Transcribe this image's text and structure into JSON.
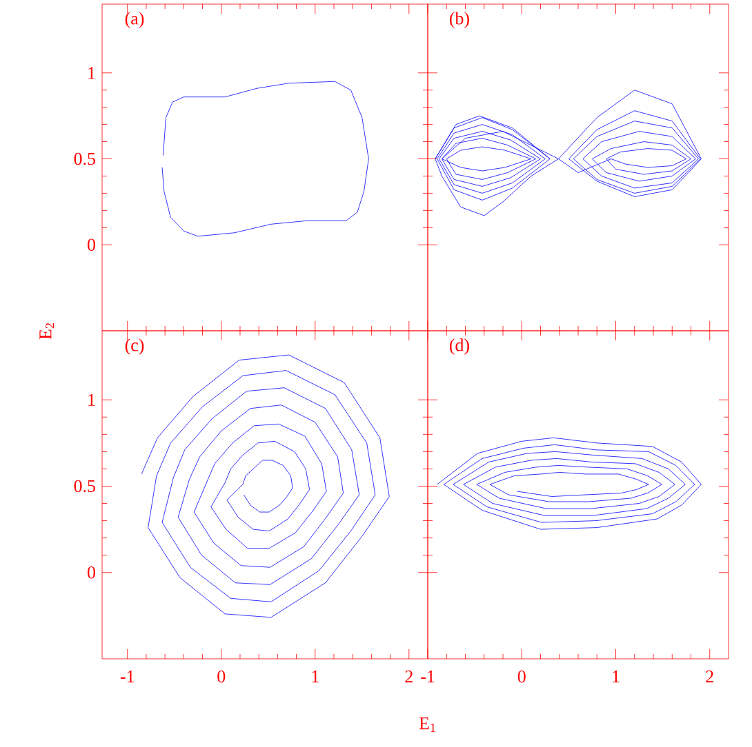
{
  "chart_data": [
    {
      "type": "line",
      "title": "(a)",
      "color": "#0000ff",
      "tick_labels": "y",
      "xlim": [
        -1.27,
        2.2
      ],
      "ylim": [
        -0.5,
        1.4
      ],
      "xticks": [
        -1,
        0,
        1,
        2
      ],
      "yticks": [
        0,
        0.5,
        1
      ],
      "x": [
        -0.62,
        -0.59,
        -0.52,
        -0.4,
        0.04,
        0.38,
        0.72,
        1.21,
        1.38,
        1.5,
        1.57,
        1.52,
        1.45,
        1.33,
        0.91,
        0.53,
        0.14,
        -0.25,
        -0.4,
        -0.54,
        -0.61,
        -0.63
      ],
      "values": [
        0.52,
        0.74,
        0.83,
        0.86,
        0.86,
        0.91,
        0.94,
        0.95,
        0.9,
        0.74,
        0.5,
        0.31,
        0.19,
        0.14,
        0.14,
        0.12,
        0.07,
        0.05,
        0.08,
        0.16,
        0.31,
        0.45
      ]
    },
    {
      "type": "line",
      "title": "(b)",
      "color": "#0000ff",
      "tick_labels": false,
      "xlim": [
        -1.0,
        2.2
      ],
      "ylim": [
        -0.5,
        1.4
      ],
      "xticks": [
        -1,
        0,
        1,
        2
      ],
      "yticks": [
        0,
        0.5,
        1
      ],
      "x": [
        -0.92,
        -0.72,
        -0.42,
        -0.1,
        0.3,
        -0.1,
        -0.42,
        -0.72,
        -0.9,
        -0.72,
        -0.42,
        -0.1,
        0.25,
        -0.1,
        -0.42,
        -0.72,
        -0.88,
        -0.72,
        -0.42,
        -0.12,
        0.2,
        -0.12,
        -0.42,
        -0.72,
        -0.85,
        -0.7,
        -0.42,
        -0.15,
        0.15,
        -0.15,
        -0.42,
        -0.7,
        -0.8,
        -0.65,
        -0.42,
        -0.18,
        0.1,
        -0.18,
        -0.42,
        -0.65,
        -0.85,
        -0.6,
        -0.2,
        0.39,
        0.8,
        1.2,
        1.6,
        1.91,
        1.6,
        1.2,
        0.8,
        0.5,
        0.8,
        1.2,
        1.6,
        1.9,
        1.6,
        1.2,
        0.8,
        0.55,
        0.8,
        1.2,
        1.6,
        1.88,
        1.6,
        1.2,
        0.85,
        0.65,
        0.85,
        1.25,
        1.6,
        1.85,
        1.6,
        1.25,
        0.9,
        0.75,
        0.95,
        1.3,
        1.6,
        1.8,
        1.6,
        1.3,
        1.0,
        0.9,
        1.05,
        1.34,
        1.6,
        1.75,
        1.6,
        1.34,
        1.1,
        0.95,
        0.6,
        0.39,
        0.1,
        -0.2,
        -0.4,
        -0.65,
        -0.85,
        -0.92,
        -0.7,
        -0.45,
        -0.1,
        0.3
      ],
      "values": [
        0.5,
        0.68,
        0.74,
        0.67,
        0.5,
        0.33,
        0.26,
        0.32,
        0.5,
        0.65,
        0.7,
        0.64,
        0.5,
        0.36,
        0.3,
        0.35,
        0.5,
        0.62,
        0.66,
        0.61,
        0.5,
        0.39,
        0.34,
        0.38,
        0.5,
        0.59,
        0.62,
        0.58,
        0.5,
        0.42,
        0.38,
        0.41,
        0.5,
        0.55,
        0.57,
        0.55,
        0.5,
        0.45,
        0.43,
        0.45,
        0.5,
        0.62,
        0.66,
        0.5,
        0.74,
        0.9,
        0.82,
        0.5,
        0.32,
        0.28,
        0.37,
        0.5,
        0.67,
        0.78,
        0.72,
        0.5,
        0.34,
        0.3,
        0.38,
        0.5,
        0.63,
        0.72,
        0.68,
        0.5,
        0.36,
        0.33,
        0.4,
        0.5,
        0.6,
        0.66,
        0.63,
        0.5,
        0.4,
        0.37,
        0.42,
        0.5,
        0.56,
        0.6,
        0.58,
        0.5,
        0.43,
        0.41,
        0.44,
        0.5,
        0.54,
        0.56,
        0.55,
        0.5,
        0.46,
        0.45,
        0.47,
        0.5,
        0.42,
        0.5,
        0.4,
        0.25,
        0.17,
        0.22,
        0.4,
        0.5,
        0.7,
        0.75,
        0.68,
        0.5
      ]
    },
    {
      "type": "line",
      "title": "(c)",
      "color": "#0000ff",
      "xlabel": "E$_{1}$",
      "ylabel": "E$_{2}$",
      "xlim": [
        -1.27,
        2.2
      ],
      "ylim": [
        -0.5,
        1.4
      ],
      "xticks": [
        -1,
        0,
        1,
        2
      ],
      "yticks": [
        0,
        0.5,
        1
      ],
      "x": [
        -0.85,
        -0.68,
        -0.3,
        0.19,
        0.72,
        1.31,
        1.69,
        1.79,
        1.5,
        1.11,
        0.53,
        0.04,
        -0.44,
        -0.78,
        -0.69,
        -0.54,
        -0.2,
        0.23,
        0.69,
        1.21,
        1.55,
        1.64,
        1.38,
        1.04,
        0.53,
        0.1,
        -0.33,
        -0.63,
        -0.51,
        -0.39,
        -0.1,
        0.27,
        0.67,
        1.11,
        1.39,
        1.47,
        1.25,
        0.96,
        0.52,
        0.15,
        -0.21,
        -0.46,
        -0.34,
        -0.23,
        0.0,
        0.31,
        0.64,
        1.0,
        1.24,
        1.3,
        1.12,
        0.88,
        0.52,
        0.21,
        -0.08,
        -0.29,
        -0.15,
        -0.07,
        0.12,
        0.35,
        0.61,
        0.89,
        1.07,
        1.12,
        0.98,
        0.79,
        0.51,
        0.28,
        0.05,
        -0.11,
        0.04,
        0.1,
        0.23,
        0.39,
        0.57,
        0.78,
        0.9,
        0.94,
        0.84,
        0.71,
        0.51,
        0.34,
        0.18,
        0.06,
        0.23,
        0.26,
        0.34,
        0.44,
        0.54,
        0.66,
        0.74,
        0.76,
        0.7,
        0.62,
        0.51,
        0.41,
        0.31,
        0.24
      ],
      "values": [
        0.57,
        0.78,
        1.02,
        1.23,
        1.26,
        1.1,
        0.78,
        0.44,
        0.21,
        -0.06,
        -0.26,
        -0.24,
        -0.03,
        0.26,
        0.56,
        0.75,
        0.96,
        1.14,
        1.17,
        1.03,
        0.75,
        0.45,
        0.24,
        0.01,
        -0.17,
        -0.15,
        0.03,
        0.29,
        0.55,
        0.71,
        0.89,
        1.05,
        1.07,
        0.95,
        0.71,
        0.45,
        0.28,
        0.08,
        -0.07,
        -0.06,
        0.1,
        0.32,
        0.54,
        0.67,
        0.82,
        0.95,
        0.97,
        0.87,
        0.67,
        0.46,
        0.32,
        0.15,
        0.03,
        0.04,
        0.17,
        0.35,
        0.53,
        0.63,
        0.75,
        0.85,
        0.86,
        0.79,
        0.63,
        0.47,
        0.36,
        0.23,
        0.14,
        0.14,
        0.25,
        0.38,
        0.52,
        0.6,
        0.68,
        0.75,
        0.76,
        0.7,
        0.6,
        0.48,
        0.4,
        0.31,
        0.24,
        0.25,
        0.32,
        0.42,
        0.51,
        0.56,
        0.6,
        0.65,
        0.65,
        0.62,
        0.56,
        0.49,
        0.44,
        0.39,
        0.35,
        0.35,
        0.39,
        0.45
      ]
    },
    {
      "type": "line",
      "title": "(d)",
      "color": "#0000ff",
      "tick_labels": "x",
      "xlim": [
        -1.0,
        2.2
      ],
      "ylim": [
        -0.5,
        1.4
      ],
      "xticks": [
        -1,
        0,
        1,
        2
      ],
      "yticks": [
        0,
        0.5,
        1
      ],
      "x": [
        -0.9,
        -0.47,
        0.0,
        0.34,
        0.8,
        1.39,
        1.7,
        1.91,
        1.7,
        1.44,
        0.8,
        0.2,
        -0.42,
        -0.83,
        -0.42,
        0.02,
        0.35,
        0.79,
        1.35,
        1.64,
        1.84,
        1.64,
        1.39,
        0.79,
        0.21,
        -0.37,
        -0.73,
        -0.35,
        0.06,
        0.36,
        0.76,
        1.28,
        1.56,
        1.74,
        1.56,
        1.33,
        0.76,
        0.24,
        -0.31,
        -0.62,
        -0.28,
        0.1,
        0.37,
        0.74,
        1.21,
        1.46,
        1.63,
        1.46,
        1.25,
        0.74,
        0.26,
        -0.24,
        -0.48,
        -0.18,
        0.15,
        0.39,
        0.71,
        1.12,
        1.34,
        1.49,
        1.34,
        1.16,
        0.71,
        0.29,
        -0.14,
        -0.34,
        -0.08,
        0.2,
        0.4,
        0.68,
        1.03,
        1.22,
        1.35,
        1.22,
        1.06,
        0.68,
        0.32,
        -0.05
      ],
      "values": [
        0.51,
        0.69,
        0.76,
        0.78,
        0.75,
        0.73,
        0.64,
        0.51,
        0.39,
        0.31,
        0.26,
        0.25,
        0.36,
        0.51,
        0.66,
        0.72,
        0.74,
        0.71,
        0.7,
        0.62,
        0.51,
        0.41,
        0.34,
        0.3,
        0.29,
        0.38,
        0.51,
        0.64,
        0.69,
        0.7,
        0.68,
        0.66,
        0.6,
        0.51,
        0.43,
        0.37,
        0.33,
        0.33,
        0.4,
        0.51,
        0.61,
        0.65,
        0.66,
        0.64,
        0.63,
        0.58,
        0.51,
        0.44,
        0.4,
        0.37,
        0.37,
        0.43,
        0.51,
        0.58,
        0.61,
        0.62,
        0.61,
        0.6,
        0.56,
        0.51,
        0.46,
        0.43,
        0.41,
        0.41,
        0.45,
        0.51,
        0.56,
        0.57,
        0.58,
        0.57,
        0.57,
        0.54,
        0.51,
        0.48,
        0.46,
        0.45,
        0.44,
        0.47
      ]
    }
  ]
}
